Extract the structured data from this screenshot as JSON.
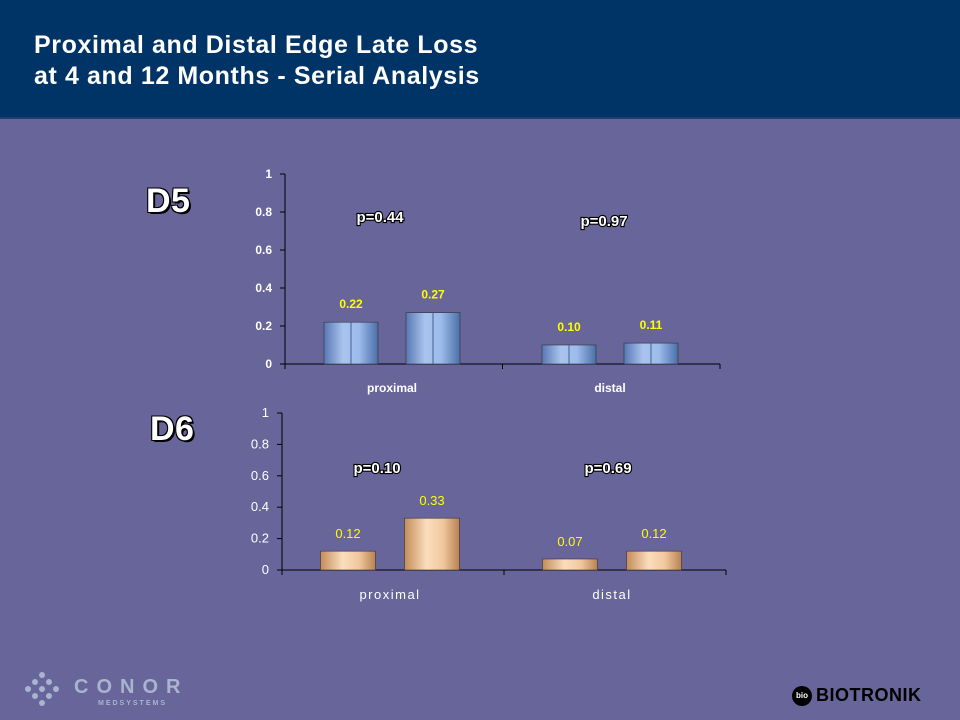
{
  "header": {
    "title_line1": "Proximal and Distal Edge Late Loss",
    "title_line2": "at 4 and 12 Months - Serial Analysis"
  },
  "chart_data": [
    {
      "type": "bar",
      "title": "D5",
      "categories": [
        "proximal",
        "distal"
      ],
      "series": [
        {
          "values": [
            0.22,
            0.1
          ]
        },
        {
          "values": [
            0.27,
            0.11
          ]
        }
      ],
      "data_labels": [
        [
          "0.22",
          "0.27"
        ],
        [
          "0.10",
          "0.11"
        ]
      ],
      "annotations": [
        "p=0.44",
        "p=0.97"
      ],
      "ylim": [
        0,
        1
      ],
      "yticks": [
        "0",
        "0.2",
        "0.4",
        "0.6",
        "0.8",
        "1"
      ],
      "grid": false,
      "colors": {
        "bar": "#7FA2DC",
        "bar_light": "#A9C4EE",
        "bar_dark": "#4A6FA8",
        "label": "#FFFF00"
      }
    },
    {
      "type": "bar",
      "title": "D6",
      "categories": [
        "proximal",
        "distal"
      ],
      "series": [
        {
          "values": [
            0.12,
            0.07
          ]
        },
        {
          "values": [
            0.33,
            0.12
          ]
        }
      ],
      "data_labels": [
        [
          "0.12",
          "0.33"
        ],
        [
          "0.07",
          "0.12"
        ]
      ],
      "annotations": [
        "p=0.10",
        "p=0.69"
      ],
      "ylim": [
        0,
        1
      ],
      "yticks": [
        "0",
        "0.2",
        "0.4",
        "0.6",
        "0.8",
        "1"
      ],
      "grid": false,
      "colors": {
        "bar": "#E8B98C",
        "bar_light": "#FBDDBC",
        "bar_dark": "#B78253",
        "label": "#FFFF00"
      }
    }
  ],
  "logos": {
    "conor_word": "CONOR",
    "conor_sub": "MEDSYSTEMS",
    "biotronik_icon": "bio",
    "biotronik_word": "BIOTRONIK"
  }
}
